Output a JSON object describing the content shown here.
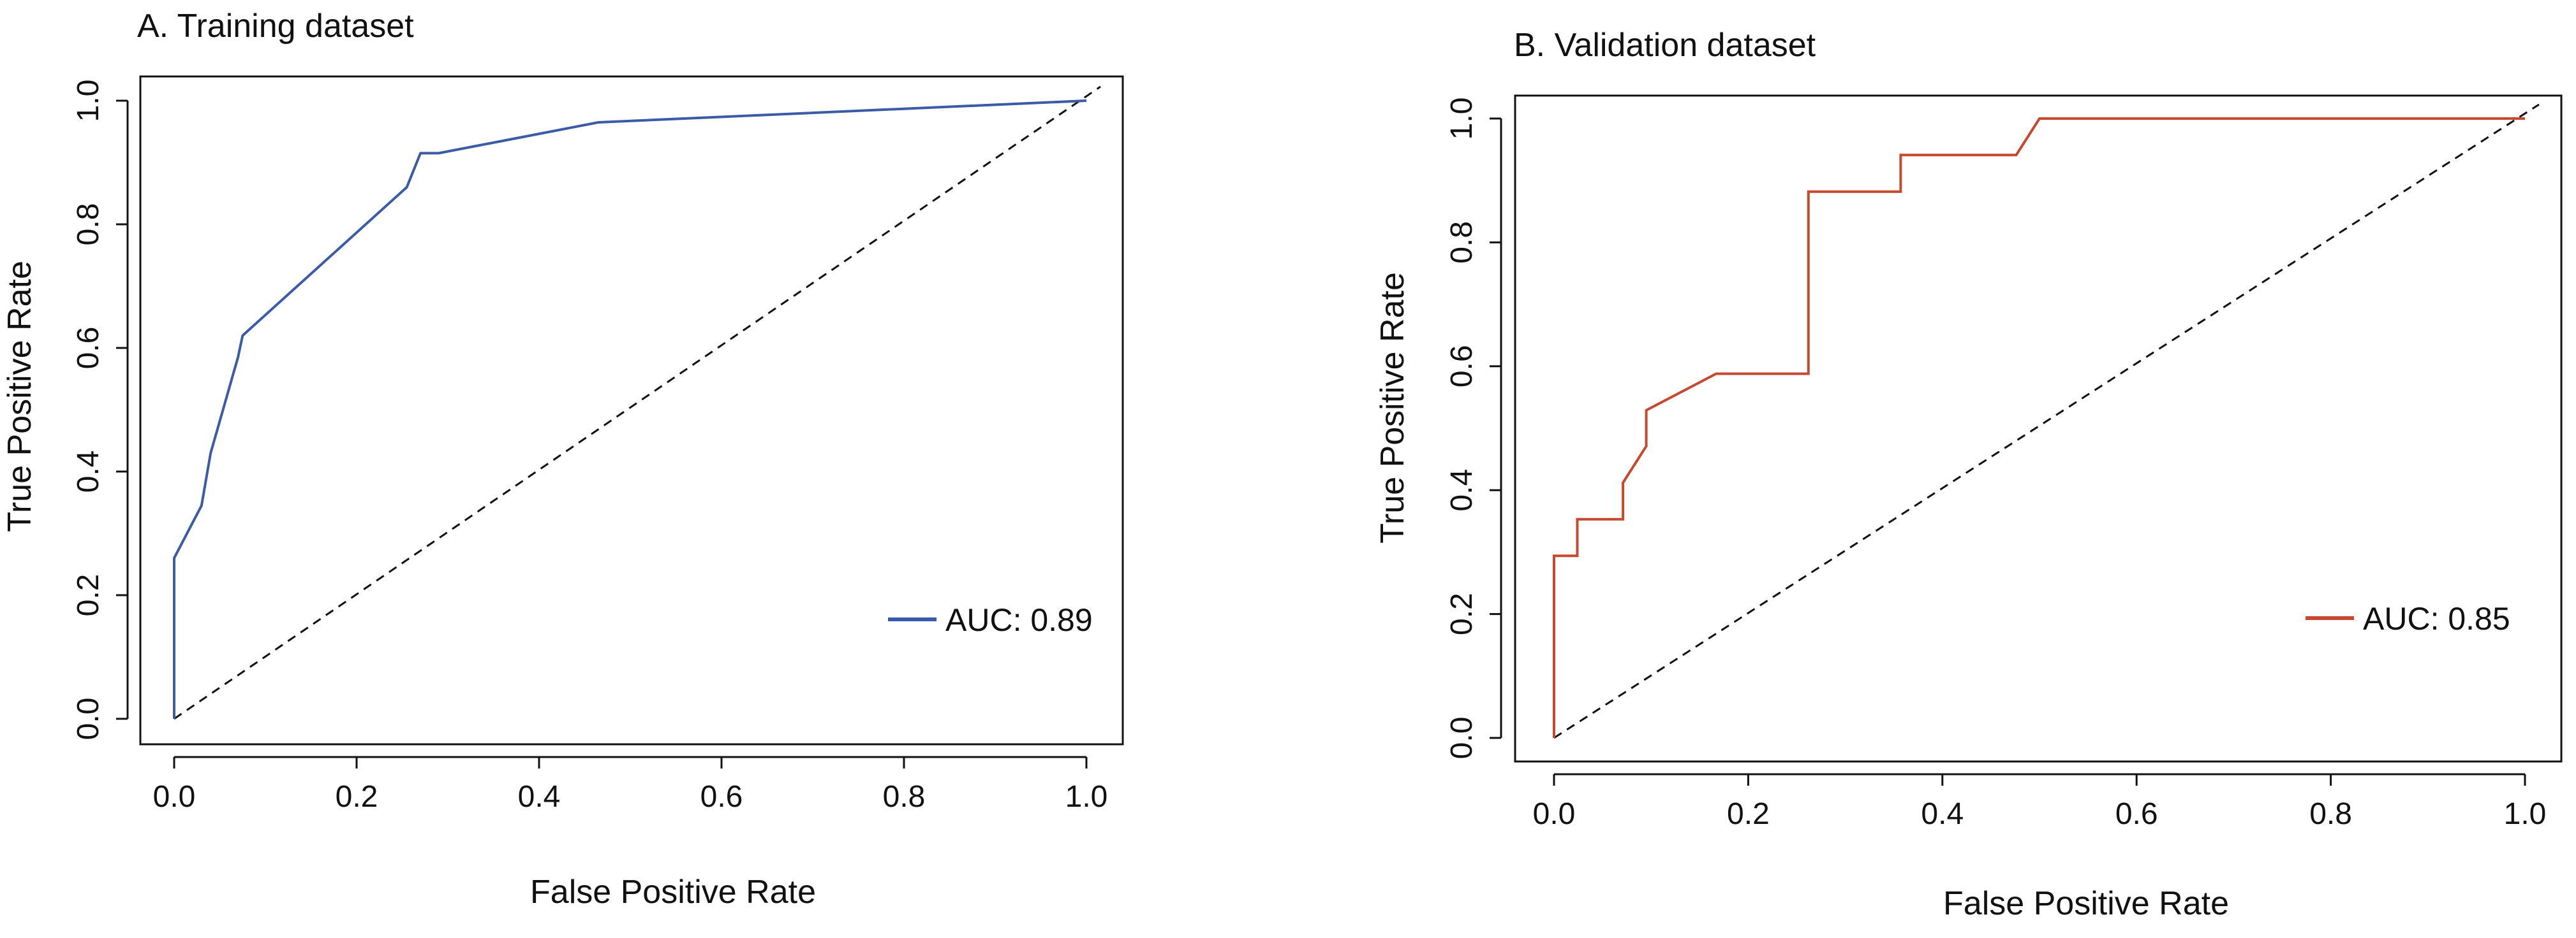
{
  "chart_data": [
    {
      "type": "line",
      "title": "A. Training dataset",
      "xlabel": "False Positive Rate",
      "ylabel": "True Positive Rate",
      "xlim": [
        0,
        1
      ],
      "ylim": [
        0,
        1
      ],
      "xticks": [
        "0.0",
        "0.2",
        "0.4",
        "0.6",
        "0.8",
        "1.0"
      ],
      "yticks": [
        "0.0",
        "0.2",
        "0.4",
        "0.6",
        "0.8",
        "1.0"
      ],
      "grid": false,
      "legend_position": "bottom-right",
      "series": [
        {
          "name": "AUC: 0.89",
          "color": "#3b5ba9",
          "x": [
            0.0,
            0.0,
            0.03,
            0.04,
            0.07,
            0.075,
            0.255,
            0.27,
            0.29,
            0.465,
            1.0
          ],
          "y": [
            0.0,
            0.26,
            0.345,
            0.43,
            0.585,
            0.62,
            0.86,
            0.915,
            0.915,
            0.965,
            1.0
          ]
        }
      ],
      "reference_line": {
        "x": [
          0,
          1
        ],
        "y": [
          0,
          1
        ],
        "style": "dashed",
        "color": "#111111"
      }
    },
    {
      "type": "line",
      "title": "B. Validation dataset",
      "xlabel": "False Positive Rate",
      "ylabel": "True Positive Rate",
      "xlim": [
        0,
        1
      ],
      "ylim": [
        0,
        1
      ],
      "xticks": [
        "0.0",
        "0.2",
        "0.4",
        "0.6",
        "0.8",
        "1.0"
      ],
      "yticks": [
        "0.0",
        "0.2",
        "0.4",
        "0.6",
        "0.8",
        "1.0"
      ],
      "grid": false,
      "legend_position": "bottom-right",
      "series": [
        {
          "name": "AUC: 0.85",
          "color": "#c8472f",
          "x": [
            0.0,
            0.0,
            0.024,
            0.024,
            0.071,
            0.071,
            0.095,
            0.095,
            0.167,
            0.262,
            0.262,
            0.357,
            0.357,
            0.476,
            0.5,
            1.0
          ],
          "y": [
            0.0,
            0.294,
            0.294,
            0.353,
            0.353,
            0.412,
            0.471,
            0.529,
            0.588,
            0.588,
            0.882,
            0.882,
            0.941,
            0.941,
            1.0,
            1.0
          ]
        }
      ],
      "reference_line": {
        "x": [
          0,
          1
        ],
        "y": [
          0,
          1
        ],
        "style": "dashed",
        "color": "#111111"
      }
    }
  ]
}
